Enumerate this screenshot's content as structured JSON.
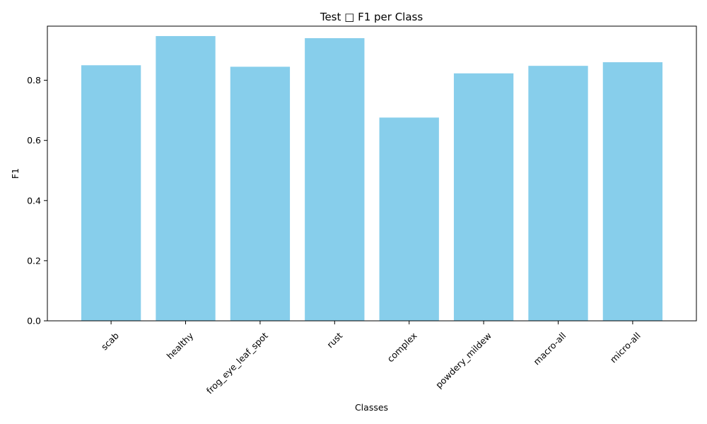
{
  "chart_data": {
    "type": "bar",
    "title": "Test □ F1 per Class",
    "xlabel": "Classes",
    "ylabel": "F1",
    "categories": [
      "scab",
      "healthy",
      "frog_eye_leaf_spot",
      "rust",
      "complex",
      "powdery_mildew",
      "macro-all",
      "micro-all"
    ],
    "values": [
      0.85,
      0.947,
      0.845,
      0.94,
      0.676,
      0.823,
      0.848,
      0.86
    ],
    "ylim": [
      0,
      0.98
    ],
    "yticks": [
      "0.0",
      "0.2",
      "0.4",
      "0.6",
      "0.8"
    ],
    "bar_color": "#87ceeb",
    "grid": false,
    "legend": "none"
  }
}
